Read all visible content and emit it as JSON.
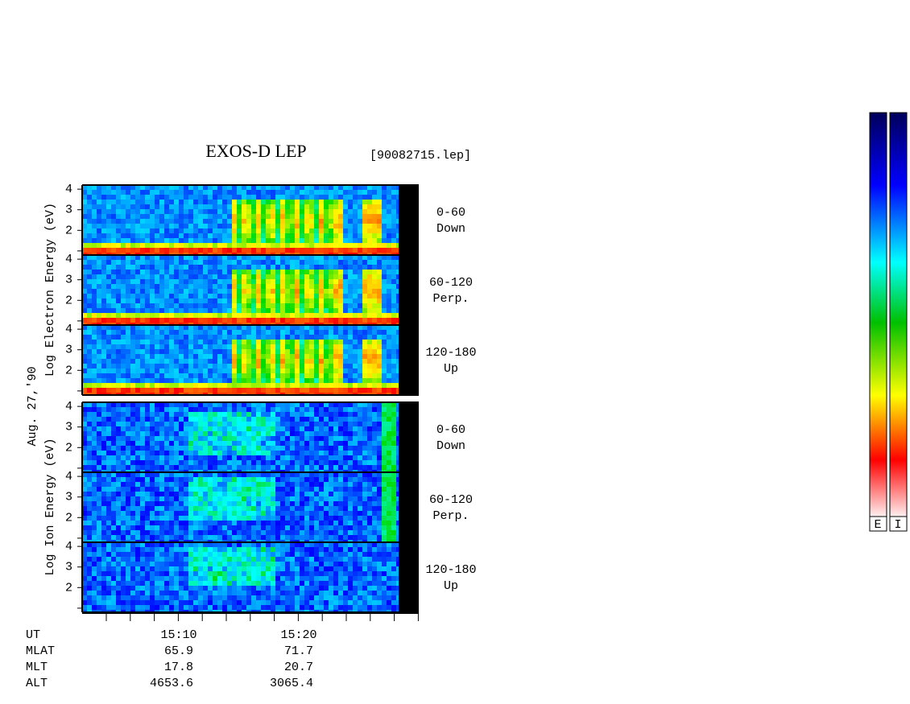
{
  "chart_data": {
    "type": "spectrogram",
    "title": "EXOS-D LEP",
    "file": "[90082715.lep]",
    "date": "Aug. 27,'90",
    "groups": [
      {
        "name": "Log Electron Energy (eV)",
        "panels": [
          {
            "angle": "0-60",
            "direction": "Down"
          },
          {
            "angle": "60-120",
            "direction": "Perp."
          },
          {
            "angle": "120-180",
            "direction": "Up"
          }
        ]
      },
      {
        "name": "Log Ion Energy (eV)",
        "panels": [
          {
            "angle": "0-60",
            "direction": "Down"
          },
          {
            "angle": "60-120",
            "direction": "Perp."
          },
          {
            "angle": "120-180",
            "direction": "Up"
          }
        ]
      }
    ],
    "ylim": [
      0.8,
      4.2
    ],
    "yticks": [
      {
        "value": 1,
        "label": null
      },
      2,
      3,
      4
    ],
    "xticks": [
      "15:10",
      "15:20"
    ],
    "ephemeris": [
      {
        "label": "UT"
      },
      {
        "label": "MLAT",
        "values": [
          65.9,
          71.7
        ]
      },
      {
        "label": "MLT",
        "values": [
          17.8,
          20.7
        ]
      },
      {
        "label": "ALT",
        "values": [
          4653.6,
          3065.4
        ]
      }
    ],
    "colorbars": [
      "E",
      "I"
    ]
  }
}
